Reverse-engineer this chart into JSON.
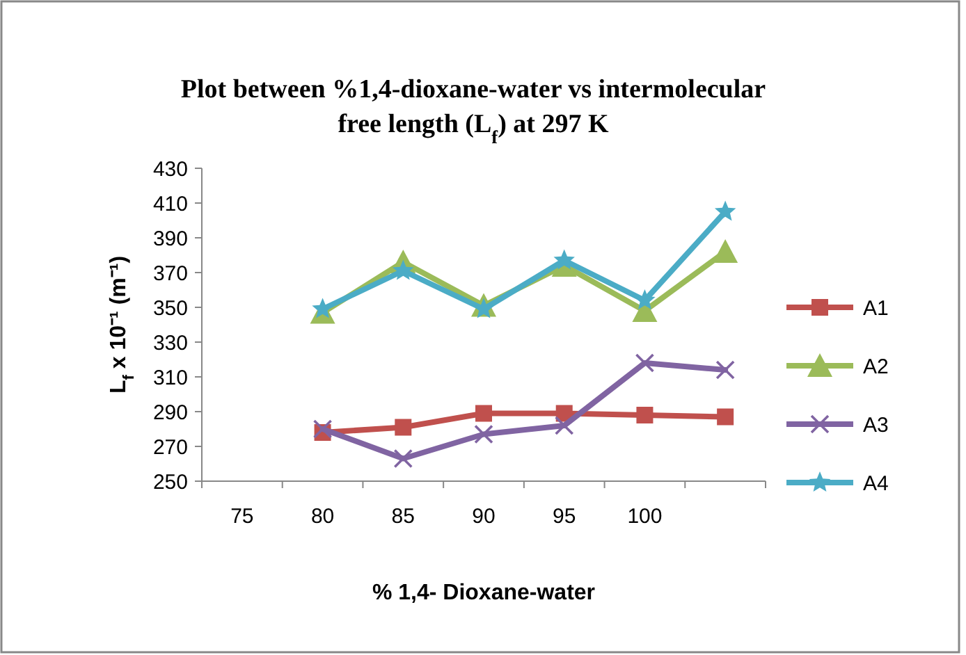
{
  "chart_data": {
    "type": "line",
    "title": "Plot between %1,4-dioxane-water vs intermolecular free length (L$_{f}$)  at 297 K",
    "xlabel": "%  1,4- Dioxane-water",
    "ylabel": "L$_{f}$ x 10⁻¹ (m⁻¹)",
    "categories": [
      "75",
      "80",
      "85",
      "90",
      "95",
      "100",
      null
    ],
    "series": [
      {
        "name": "A1",
        "color": "#c0504d",
        "marker": "square",
        "values": [
          null,
          278,
          281,
          289,
          289,
          288,
          287
        ]
      },
      {
        "name": "A2",
        "color": "#9bbb59",
        "marker": "triangle",
        "values": [
          null,
          347,
          376,
          351,
          374,
          348,
          382
        ]
      },
      {
        "name": "A3",
        "color": "#8064a2",
        "marker": "cross",
        "values": [
          null,
          280,
          263,
          277,
          282,
          318,
          314
        ]
      },
      {
        "name": "A4",
        "color": "#4bacc6",
        "marker": "star",
        "values": [
          null,
          349,
          371,
          349,
          377,
          354,
          405
        ]
      }
    ],
    "ylim": [
      250,
      430
    ],
    "yticks": [
      250,
      270,
      290,
      310,
      330,
      350,
      370,
      390,
      410,
      430
    ],
    "grid": false,
    "legend": "right"
  }
}
